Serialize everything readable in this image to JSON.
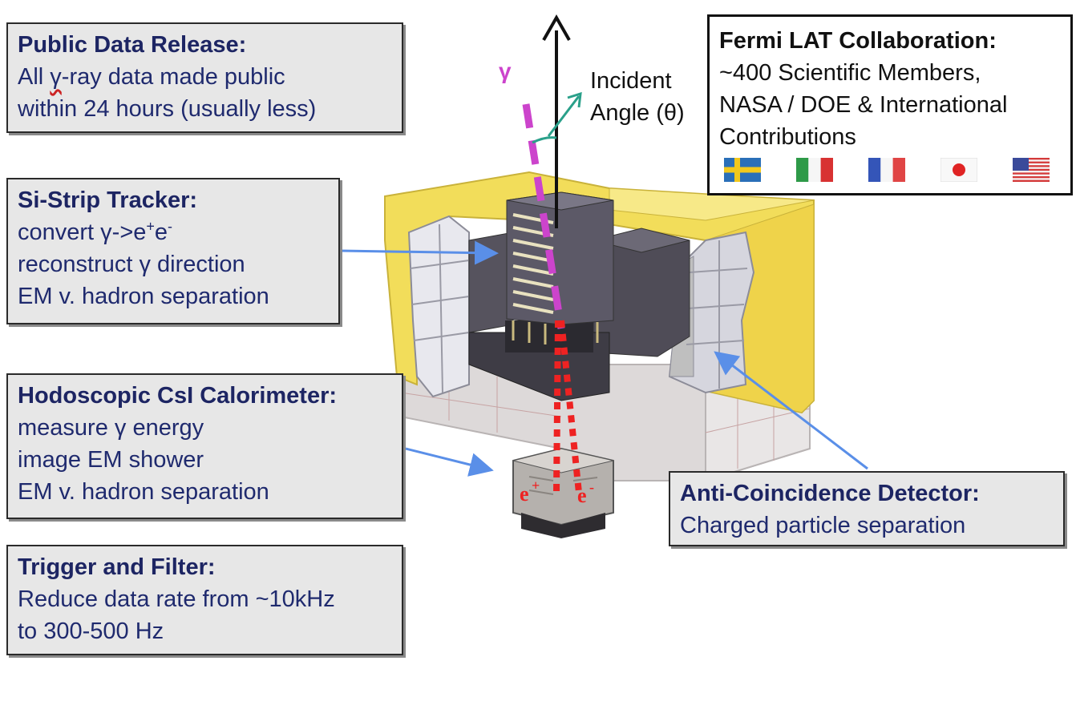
{
  "boxes": {
    "public_data": {
      "heading": "Public Data Release:",
      "line1_pre": "All ",
      "line1_gamma": "γ",
      "line1_post": "-ray data made public",
      "line2": "within 24 hours (usually less)"
    },
    "tracker": {
      "heading": "Si-Strip Tracker:",
      "line1_pre": "convert γ->e",
      "sup1": "+",
      "line1_mid": "e",
      "sup2": "-",
      "line2": "reconstruct γ direction",
      "line3": "EM v. hadron separation"
    },
    "calorimeter": {
      "heading": "Hodoscopic CsI Calorimeter:",
      "line1": "measure γ energy",
      "line2": "image EM shower",
      "line3": "EM v. hadron separation"
    },
    "trigger": {
      "heading": "Trigger and Filter:",
      "line1": "Reduce data rate from ~10kHz",
      "line2": "to 300-500 Hz"
    },
    "acd": {
      "heading": "Anti-Coincidence Detector:",
      "line1": "Charged particle separation"
    }
  },
  "collaboration": {
    "heading": "Fermi LAT Collaboration:",
    "line1": "~400 Scientific Members,",
    "line2": "NASA / DOE & International",
    "line3": "Contributions",
    "flags": [
      "sweden-flag",
      "italy-flag",
      "france-flag",
      "japan-flag",
      "usa-flag"
    ]
  },
  "labels": {
    "gamma": "γ",
    "incident_line1": "Incident",
    "incident_line2": "Angle (θ)",
    "electron_plus": "e",
    "electron_plus_sup": "+",
    "electron_minus": "e",
    "electron_minus_sup": "-"
  },
  "colors": {
    "box_text": "#1f2a6e",
    "arrow_blue": "#5a8fe8",
    "gamma_track": "#cc44cc",
    "electron_track": "#ee2222",
    "incident_arrow": "#2aa08a",
    "foam_yellow": "#f2dd5a"
  }
}
